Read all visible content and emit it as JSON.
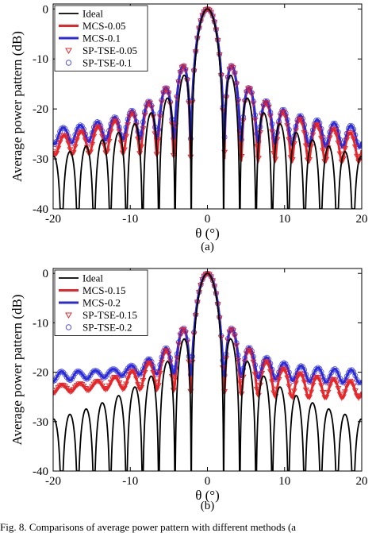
{
  "figure": {
    "caption": "Fig. 8.   Comparisons of average power pattern with different methods (a"
  },
  "chart_data": [
    {
      "type": "line",
      "sublabel": "(a)",
      "xlabel": "θ (°)",
      "ylabel": "Average power pattern (dB)",
      "xlim": [
        -20,
        20
      ],
      "ylim": [
        -40,
        1
      ],
      "xticks": [
        "-20",
        "-10",
        "0",
        "10",
        "20"
      ],
      "yticks": [
        "0",
        "-10",
        "-20",
        "-30",
        "-40"
      ],
      "legend_position": "top-left",
      "series": [
        {
          "name": "Ideal",
          "kind": "ideal",
          "floor": -40,
          "color": "#000000"
        },
        {
          "name": "MCS-0.05",
          "kind": "mcs",
          "floor": -31,
          "pos": 0.5,
          "color": "#e8262a"
        },
        {
          "name": "MCS-0.1",
          "kind": "mcs",
          "floor": -28,
          "pos": 0.2,
          "color": "#2a2ad8"
        },
        {
          "name": "SP-TSE-0.05",
          "kind": "marker-tri",
          "floor": -31,
          "pos": 0.5,
          "color": "#e8262a"
        },
        {
          "name": "SP-TSE-0.1",
          "kind": "marker-circ",
          "floor": -28,
          "pos": 0.2,
          "color": "#5555ee"
        }
      ]
    },
    {
      "type": "line",
      "sublabel": "(b)",
      "xlabel": "θ (°)",
      "ylabel": "Average power pattern (dB)",
      "xlim": [
        -20,
        20
      ],
      "ylim": [
        -40,
        1
      ],
      "xticks": [
        "-20",
        "-10",
        "0",
        "10",
        "20"
      ],
      "yticks": [
        "0",
        "-10",
        "-20",
        "-30",
        "-40"
      ],
      "legend_position": "top-left",
      "series": [
        {
          "name": "Ideal",
          "kind": "ideal",
          "floor": -40,
          "color": "#000000"
        },
        {
          "name": "MCS-0.15",
          "kind": "mcs",
          "floor": -25.5,
          "pos": 0.4,
          "color": "#e8262a"
        },
        {
          "name": "MCS-0.2",
          "kind": "mcs",
          "floor": -22.5,
          "pos": 0.2,
          "color": "#2a2ad8"
        },
        {
          "name": "SP-TSE-0.15",
          "kind": "marker-tri",
          "floor": -25.5,
          "pos": 0.4,
          "color": "#e8262a"
        },
        {
          "name": "SP-TSE-0.2",
          "kind": "marker-circ",
          "floor": -22.5,
          "pos": 0.2,
          "color": "#5555ee"
        }
      ]
    }
  ]
}
